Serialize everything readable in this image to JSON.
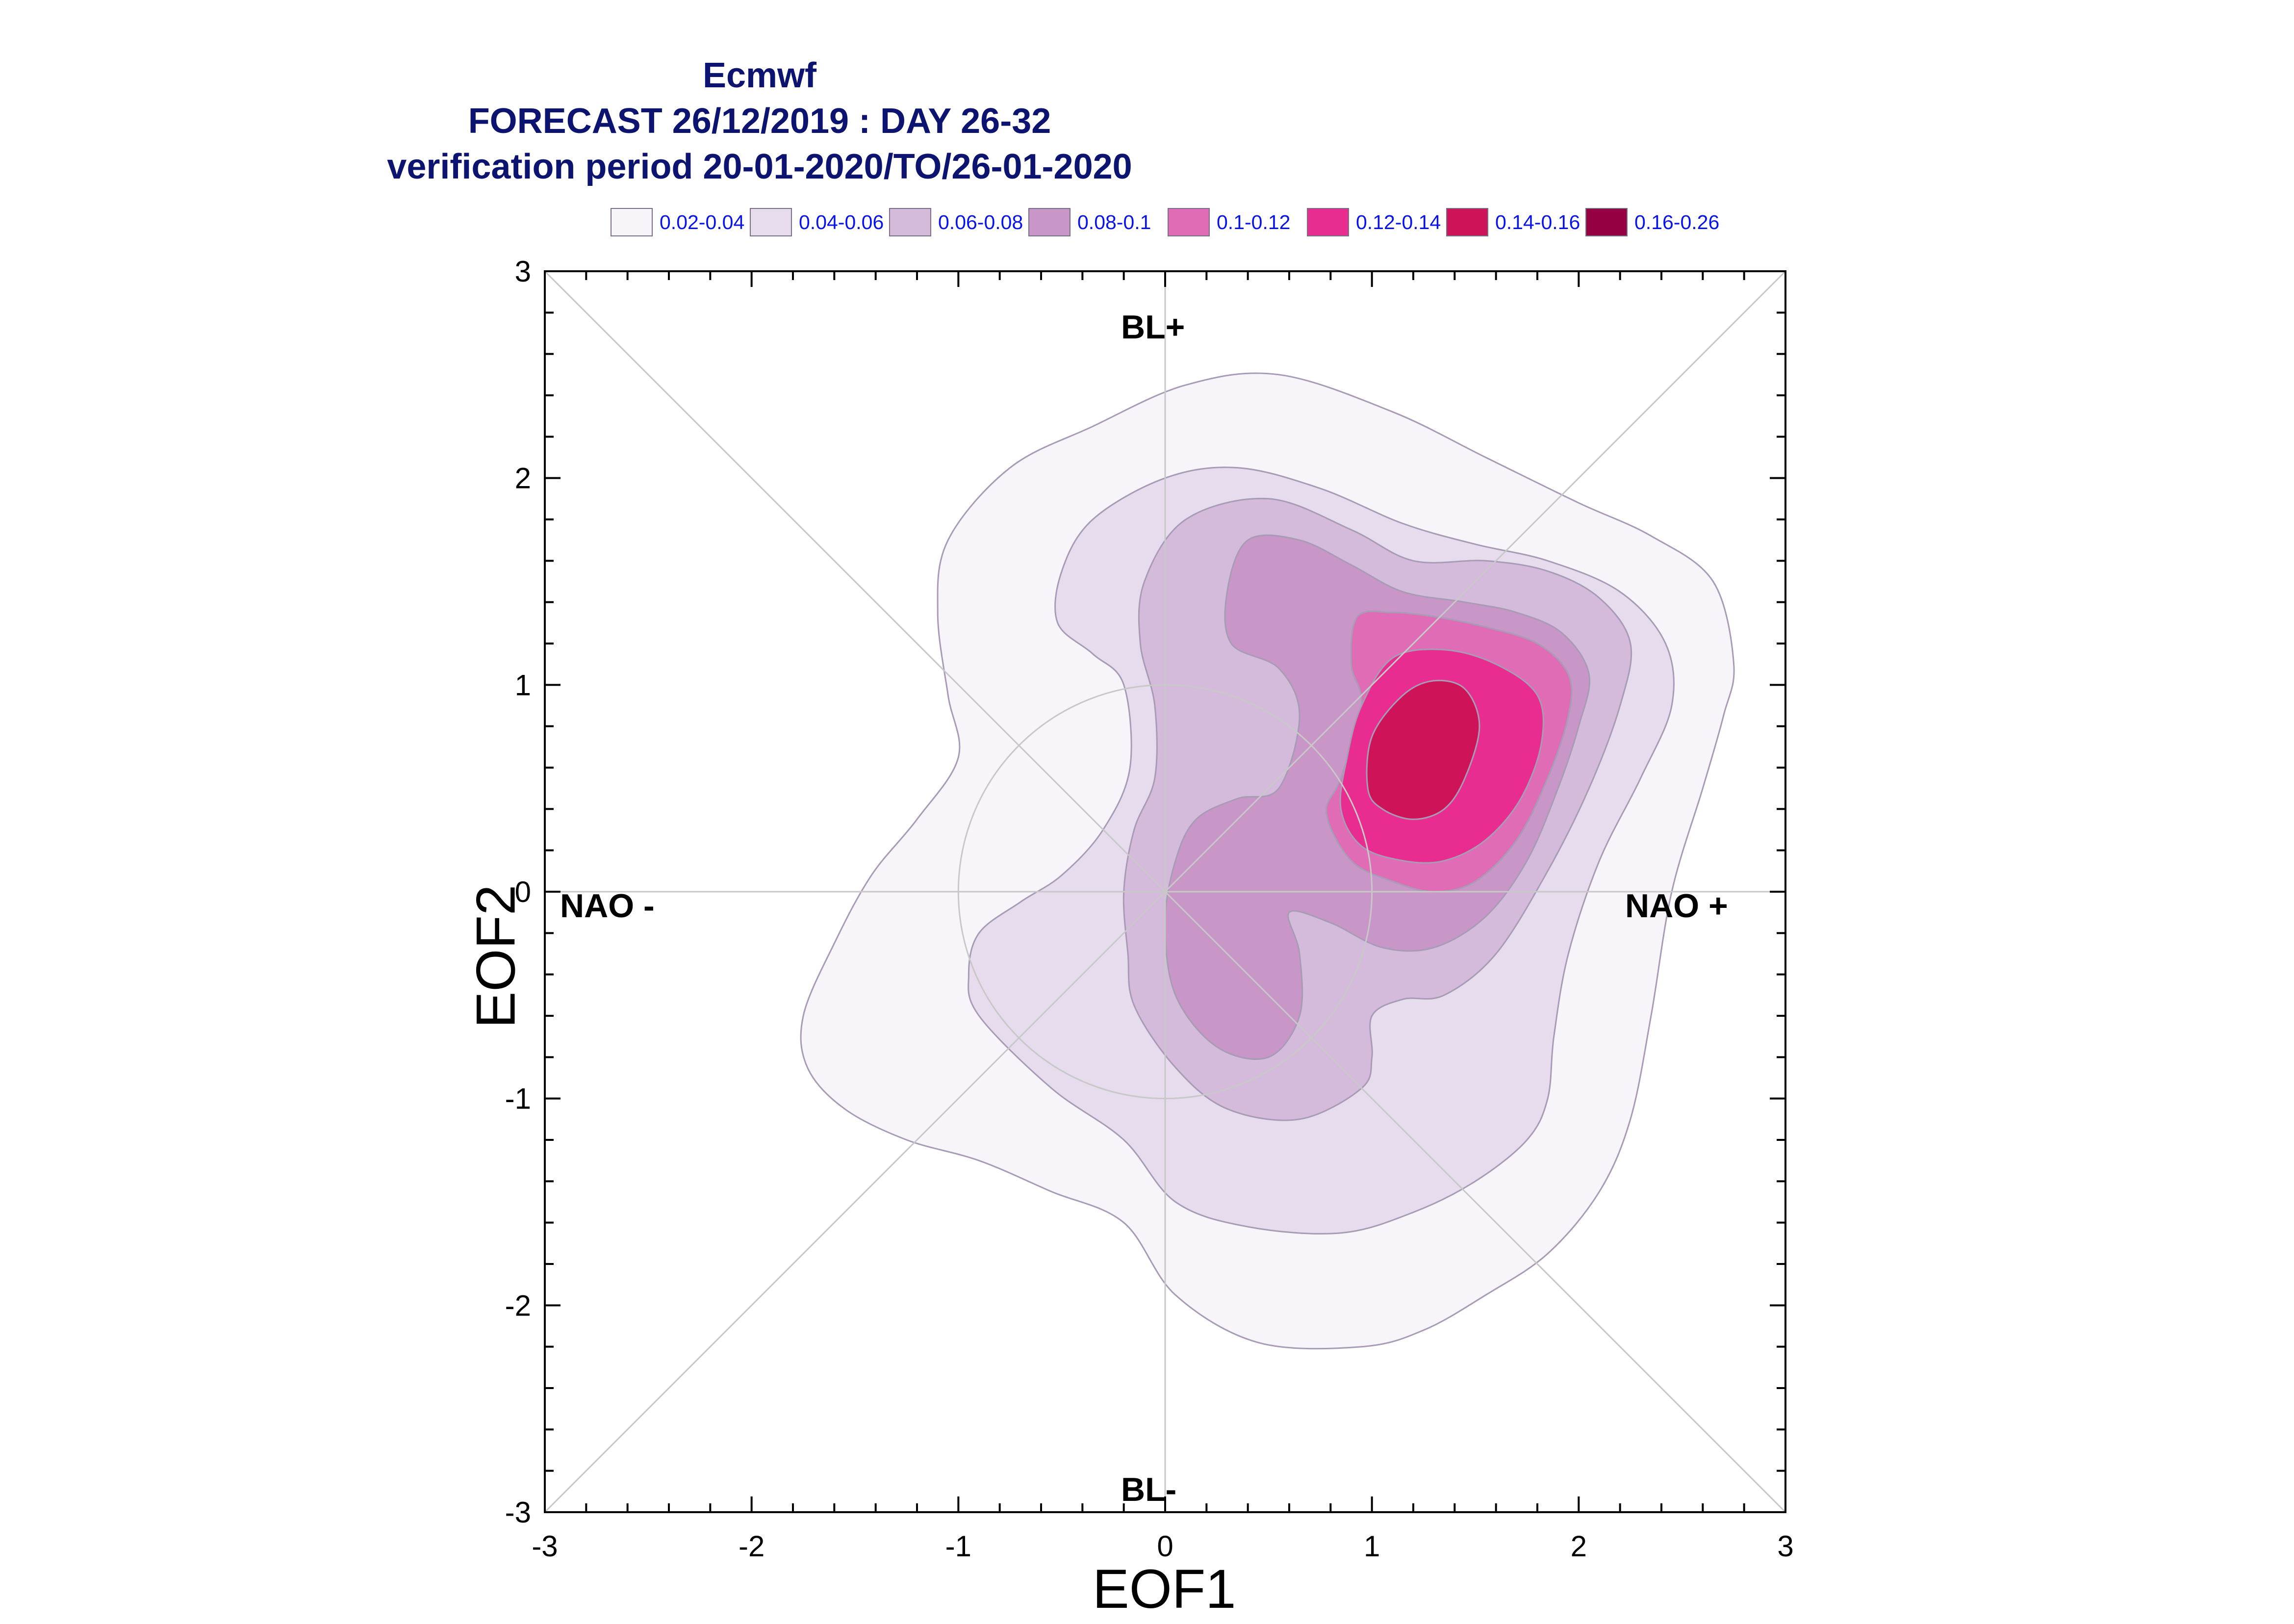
{
  "title": {
    "line1": "Ecmwf",
    "line2": "FORECAST 26/12/2019 : DAY 26-32",
    "line3": "verification period 20-01-2020/TO/26-01-2020"
  },
  "legend": [
    {
      "label": "0.02-0.04",
      "color": "#f7f5fa"
    },
    {
      "label": "0.04-0.06",
      "color": "#e6dcee"
    },
    {
      "label": "0.06-0.08",
      "color": "#d4bbdb"
    },
    {
      "label": "0.08-0.1",
      "color": "#c996c8"
    },
    {
      "label": "0.1-0.12",
      "color": "#df6cb4"
    },
    {
      "label": "0.12-0.14",
      "color": "#e92d90"
    },
    {
      "label": "0.14-0.16",
      "color": "#ce1359"
    },
    {
      "label": "0.16-0.26",
      "color": "#940041"
    }
  ],
  "regime_labels": {
    "bl_plus": "BL+",
    "bl_minus": "BL-",
    "nao_minus": "NAO -",
    "nao_plus": "NAO +"
  },
  "chart_data": {
    "type": "contour",
    "xlabel": "EOF1",
    "ylabel": "EOF2",
    "xlim": [
      -3,
      3
    ],
    "ylim": [
      -3,
      3
    ],
    "x_ticks": [
      "-3",
      "-2",
      "-1",
      "0",
      "1",
      "2",
      "3"
    ],
    "y_ticks": [
      "-3",
      "-2",
      "-1",
      "0",
      "1",
      "2",
      "3"
    ],
    "reference_circle_radius": 1,
    "contours": [
      {
        "level": "0.02-0.04",
        "color": "#f7f5fa",
        "points": [
          [
            -1.75,
            -0.6
          ],
          [
            -1.73,
            -0.85
          ],
          [
            -1.55,
            -1.05
          ],
          [
            -1.25,
            -1.2
          ],
          [
            -0.9,
            -1.3
          ],
          [
            -0.55,
            -1.45
          ],
          [
            -0.2,
            -1.6
          ],
          [
            0.05,
            -1.95
          ],
          [
            0.45,
            -2.18
          ],
          [
            0.95,
            -2.2
          ],
          [
            1.25,
            -2.12
          ],
          [
            1.55,
            -1.95
          ],
          [
            1.85,
            -1.75
          ],
          [
            2.1,
            -1.45
          ],
          [
            2.25,
            -1.1
          ],
          [
            2.35,
            -0.6
          ],
          [
            2.45,
            0.0
          ],
          [
            2.6,
            0.5
          ],
          [
            2.7,
            0.85
          ],
          [
            2.75,
            1.1
          ],
          [
            2.65,
            1.5
          ],
          [
            2.35,
            1.72
          ],
          [
            2.0,
            1.88
          ],
          [
            1.55,
            2.1
          ],
          [
            1.1,
            2.32
          ],
          [
            0.55,
            2.5
          ],
          [
            0.1,
            2.45
          ],
          [
            -0.35,
            2.25
          ],
          [
            -0.75,
            2.05
          ],
          [
            -1.05,
            1.7
          ],
          [
            -1.1,
            1.35
          ],
          [
            -1.05,
            0.95
          ],
          [
            -1.0,
            0.65
          ],
          [
            -1.2,
            0.35
          ],
          [
            -1.42,
            0.08
          ],
          [
            -1.6,
            -0.25
          ]
        ]
      },
      {
        "level": "0.04-0.06",
        "color": "#e6dcee",
        "points": [
          [
            -0.95,
            -0.4
          ],
          [
            -0.9,
            -0.6
          ],
          [
            -0.55,
            -0.95
          ],
          [
            -0.2,
            -1.2
          ],
          [
            0.05,
            -1.5
          ],
          [
            0.4,
            -1.62
          ],
          [
            0.85,
            -1.65
          ],
          [
            1.2,
            -1.55
          ],
          [
            1.5,
            -1.4
          ],
          [
            1.75,
            -1.2
          ],
          [
            1.85,
            -1.0
          ],
          [
            1.88,
            -0.7
          ],
          [
            1.95,
            -0.3
          ],
          [
            2.1,
            0.15
          ],
          [
            2.3,
            0.55
          ],
          [
            2.45,
            0.9
          ],
          [
            2.42,
            1.2
          ],
          [
            2.2,
            1.45
          ],
          [
            1.85,
            1.6
          ],
          [
            1.5,
            1.68
          ],
          [
            1.15,
            1.78
          ],
          [
            0.75,
            1.95
          ],
          [
            0.35,
            2.05
          ],
          [
            0.0,
            2.0
          ],
          [
            -0.35,
            1.8
          ],
          [
            -0.5,
            1.55
          ],
          [
            -0.52,
            1.3
          ],
          [
            -0.35,
            1.15
          ],
          [
            -0.2,
            1.0
          ],
          [
            -0.17,
            0.6
          ],
          [
            -0.3,
            0.3
          ],
          [
            -0.5,
            0.08
          ],
          [
            -0.7,
            -0.05
          ],
          [
            -0.9,
            -0.2
          ]
        ]
      },
      {
        "level": "0.06-0.08",
        "color": "#d4bbdb",
        "points": [
          [
            -0.18,
            -0.3
          ],
          [
            -0.15,
            -0.55
          ],
          [
            0.05,
            -0.85
          ],
          [
            0.3,
            -1.05
          ],
          [
            0.65,
            -1.1
          ],
          [
            0.95,
            -0.95
          ],
          [
            1.0,
            -0.8
          ],
          [
            1.0,
            -0.6
          ],
          [
            1.15,
            -0.52
          ],
          [
            1.35,
            -0.5
          ],
          [
            1.6,
            -0.3
          ],
          [
            1.85,
            0.1
          ],
          [
            2.05,
            0.5
          ],
          [
            2.2,
            0.9
          ],
          [
            2.25,
            1.2
          ],
          [
            2.1,
            1.42
          ],
          [
            1.85,
            1.55
          ],
          [
            1.55,
            1.6
          ],
          [
            1.2,
            1.6
          ],
          [
            0.9,
            1.75
          ],
          [
            0.5,
            1.9
          ],
          [
            0.1,
            1.8
          ],
          [
            -0.1,
            1.5
          ],
          [
            -0.12,
            1.2
          ],
          [
            -0.05,
            0.9
          ],
          [
            -0.05,
            0.55
          ],
          [
            -0.15,
            0.3
          ],
          [
            -0.2,
            0.0
          ]
        ]
      },
      {
        "level": "0.08-0.1",
        "color": "#c996c8",
        "points": [
          [
            0.0,
            -0.15
          ],
          [
            0.05,
            -0.5
          ],
          [
            0.25,
            -0.75
          ],
          [
            0.5,
            -0.8
          ],
          [
            0.65,
            -0.6
          ],
          [
            0.65,
            -0.3
          ],
          [
            0.6,
            -0.1
          ],
          [
            0.8,
            -0.15
          ],
          [
            1.05,
            -0.27
          ],
          [
            1.3,
            -0.27
          ],
          [
            1.55,
            -0.12
          ],
          [
            1.75,
            0.15
          ],
          [
            1.9,
            0.5
          ],
          [
            2.0,
            0.8
          ],
          [
            2.05,
            1.05
          ],
          [
            1.92,
            1.25
          ],
          [
            1.7,
            1.35
          ],
          [
            1.45,
            1.4
          ],
          [
            1.15,
            1.45
          ],
          [
            0.9,
            1.58
          ],
          [
            0.65,
            1.7
          ],
          [
            0.4,
            1.7
          ],
          [
            0.3,
            1.45
          ],
          [
            0.32,
            1.2
          ],
          [
            0.55,
            1.08
          ],
          [
            0.65,
            0.85
          ],
          [
            0.55,
            0.5
          ],
          [
            0.35,
            0.45
          ],
          [
            0.15,
            0.35
          ],
          [
            0.05,
            0.15
          ]
        ]
      },
      {
        "level": "0.1-0.12",
        "color": "#df6cb4",
        "points": [
          [
            0.85,
            0.55
          ],
          [
            0.78,
            0.38
          ],
          [
            0.9,
            0.15
          ],
          [
            1.1,
            0.05
          ],
          [
            1.3,
            0.0
          ],
          [
            1.5,
            0.05
          ],
          [
            1.7,
            0.25
          ],
          [
            1.85,
            0.55
          ],
          [
            1.95,
            0.85
          ],
          [
            1.95,
            1.05
          ],
          [
            1.8,
            1.2
          ],
          [
            1.55,
            1.28
          ],
          [
            1.3,
            1.33
          ],
          [
            1.1,
            1.35
          ],
          [
            0.93,
            1.33
          ],
          [
            0.9,
            1.1
          ],
          [
            0.95,
            0.9
          ]
        ]
      },
      {
        "level": "0.12-0.14",
        "color": "#e92d90",
        "points": [
          [
            0.85,
            0.4
          ],
          [
            0.95,
            0.22
          ],
          [
            1.15,
            0.15
          ],
          [
            1.35,
            0.15
          ],
          [
            1.55,
            0.25
          ],
          [
            1.72,
            0.45
          ],
          [
            1.82,
            0.72
          ],
          [
            1.8,
            0.95
          ],
          [
            1.6,
            1.1
          ],
          [
            1.35,
            1.17
          ],
          [
            1.1,
            1.13
          ],
          [
            0.95,
            0.9
          ],
          [
            0.88,
            0.65
          ]
        ]
      },
      {
        "level": "0.14-0.16",
        "color": "#ce1359",
        "points": [
          [
            0.98,
            0.5
          ],
          [
            1.05,
            0.4
          ],
          [
            1.2,
            0.35
          ],
          [
            1.35,
            0.4
          ],
          [
            1.45,
            0.55
          ],
          [
            1.52,
            0.8
          ],
          [
            1.45,
            0.98
          ],
          [
            1.3,
            1.02
          ],
          [
            1.15,
            0.95
          ],
          [
            1.0,
            0.75
          ]
        ]
      }
    ]
  }
}
